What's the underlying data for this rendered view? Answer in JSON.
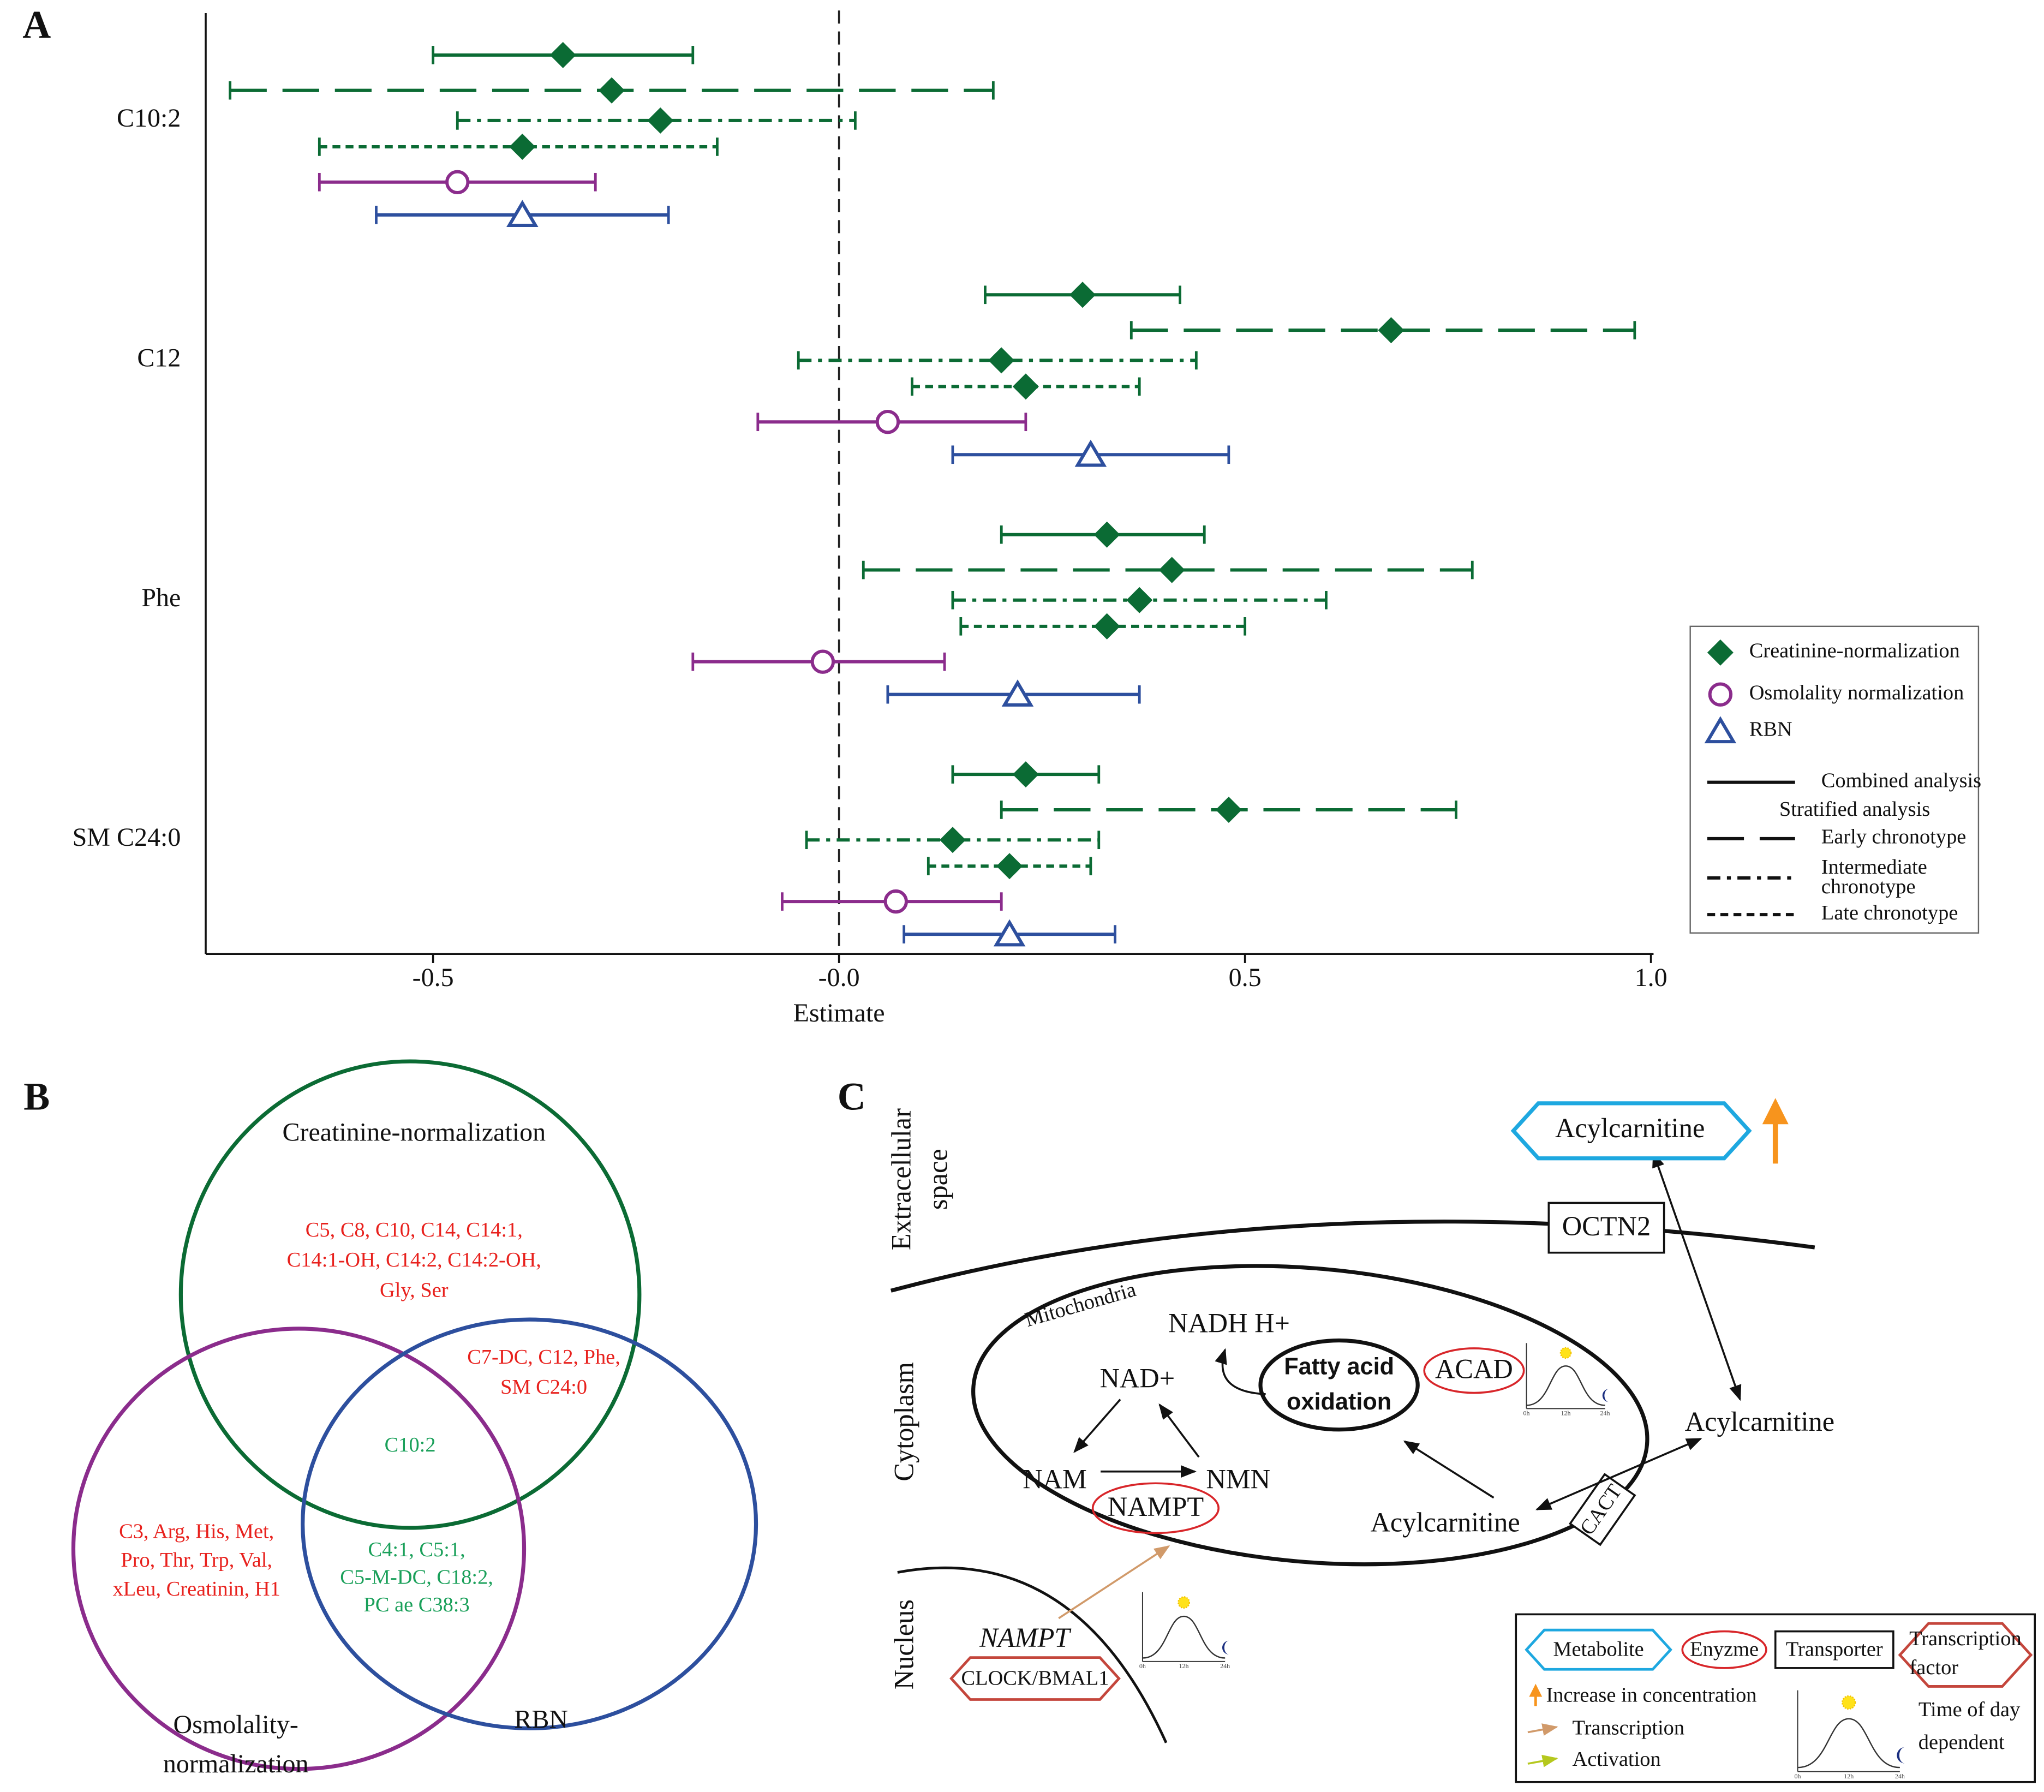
{
  "panel_labels": [
    "A",
    "B",
    "C"
  ],
  "chart_data": {
    "type": "forest",
    "xlabel": "Estimate",
    "categories": [
      "C10:2",
      "C12",
      "Phe",
      "SM C24:0"
    ],
    "xlim": [
      -0.78,
      1.0
    ],
    "xticks": [
      -0.5,
      {
        "value": 0,
        "label": "-0.0"
      },
      0.5,
      {
        "value": 1,
        "label": "1.0"
      }
    ],
    "reference_line": 0,
    "series": [
      {
        "color": "#0b6b34",
        "marker": "diamond",
        "dash": "solid",
        "values": [
          -0.34,
          0.3,
          0.33,
          0.23
        ],
        "lower": [
          -0.5,
          0.18,
          0.2,
          0.14
        ],
        "upper": [
          -0.18,
          0.42,
          0.45,
          0.32
        ]
      },
      {
        "color": "#0b6b34",
        "marker": "diamond",
        "dash": "long",
        "values": [
          -0.28,
          0.68,
          0.41,
          0.48
        ],
        "lower": [
          -0.75,
          0.36,
          0.03,
          0.2
        ],
        "upper": [
          0.19,
          0.98,
          0.78,
          0.76
        ]
      },
      {
        "color": "#0b6b34",
        "marker": "diamond",
        "dash": "dashdot",
        "values": [
          -0.22,
          0.2,
          0.37,
          0.14
        ],
        "lower": [
          -0.47,
          -0.05,
          0.14,
          -0.04
        ],
        "upper": [
          0.02,
          0.44,
          0.6,
          0.32
        ]
      },
      {
        "color": "#0b6b34",
        "marker": "diamond",
        "dash": "short",
        "values": [
          -0.39,
          0.23,
          0.33,
          0.21
        ],
        "lower": [
          -0.64,
          0.09,
          0.15,
          0.11
        ],
        "upper": [
          -0.15,
          0.37,
          0.5,
          0.31
        ]
      },
      {
        "color": "#8b2c8c",
        "marker": "circle",
        "dash": "solid",
        "values": [
          -0.47,
          0.06,
          -0.02,
          0.07
        ],
        "lower": [
          -0.64,
          -0.1,
          -0.18,
          -0.07
        ],
        "upper": [
          -0.3,
          0.23,
          0.13,
          0.2
        ]
      },
      {
        "color": "#2d4f9e",
        "marker": "triangle",
        "dash": "solid",
        "values": [
          -0.39,
          0.31,
          0.22,
          0.21
        ],
        "lower": [
          -0.57,
          0.14,
          0.06,
          0.08
        ],
        "upper": [
          -0.21,
          0.48,
          0.37,
          0.34
        ]
      }
    ],
    "legend": {
      "position": "right",
      "markers": [
        {
          "name": "Creatinine-normalization",
          "marker": "diamond",
          "color": "#0b6b34"
        },
        {
          "name": "Osmolality normalization",
          "marker": "circle",
          "color": "#8b2c8c"
        },
        {
          "name": "RBN",
          "marker": "triangle",
          "color": "#2d4f9e"
        }
      ],
      "lines": [
        {
          "name": [
            "Combined analysis"
          ],
          "dash": "solid"
        },
        {
          "name": [
            "Early chronotype"
          ],
          "dash": "long"
        },
        {
          "name": [
            "Intermediate",
            "chronotype"
          ],
          "dash": "dashdot"
        },
        {
          "name": [
            "Late chronotype"
          ],
          "dash": "short"
        }
      ],
      "stratified_header": "Stratified analysis"
    }
  },
  "venn": {
    "sets": [
      {
        "name": [
          "Creatinine-normalization"
        ]
      },
      {
        "name": [
          "Osmolality-",
          "normalization"
        ]
      },
      {
        "name": [
          "RBN"
        ]
      }
    ],
    "regions": [
      {
        "lines": [
          "C5, C8, C10, C14, C14:1,",
          "C14:1-OH, C14:2, C14:2-OH,",
          "Gly, Ser"
        ]
      },
      {
        "lines": [
          "C7-DC, C12, Phe,",
          "SM C24:0"
        ]
      },
      {
        "lines": [
          "C10:2"
        ]
      },
      {
        "lines": [
          "C3, Arg, His, Met,",
          "Pro, Thr, Trp, Val,",
          "xLeu, Creatinin, H1"
        ]
      },
      {
        "lines": [
          "C4:1, C5:1,",
          "C5-M-DC, C18:2,",
          "PC ae C38:3"
        ]
      }
    ]
  },
  "pathway": {
    "compartments": {
      "extracellular": [
        "Extracellular",
        "space"
      ],
      "cytoplasm": "Cytoplasm",
      "nucleus": "Nucleus",
      "mitochondria": "Mitochondria"
    },
    "nodes": {
      "acyl_out": "Acylcarnitine",
      "octn2": "OCTN2",
      "nadh": "NADH  H+",
      "nad": "NAD+",
      "nam": "NAM",
      "nmn": "NMN",
      "nampt_enzyme": "NAMPT",
      "fao": [
        "Fatty acid",
        "oxidation"
      ],
      "acad": "ACAD",
      "acyl_cyto": "Acylcarnitine",
      "acyl_mito": "Acylcarnitine",
      "cact": "CACT",
      "nampt_gene": "NAMPT",
      "clock": "CLOCK/BMAL1"
    },
    "time_ticks": [
      "0h",
      "12h",
      "24h"
    ],
    "legend": {
      "metabolite": "Metabolite",
      "enzyme": "Enyzme",
      "transporter": "Transporter",
      "tf": [
        "Transcription",
        "factor"
      ],
      "increase": "Increase in concentration",
      "transcription": "Transcription",
      "activation": "Activation",
      "time": [
        "Time of day",
        "dependent"
      ]
    }
  }
}
